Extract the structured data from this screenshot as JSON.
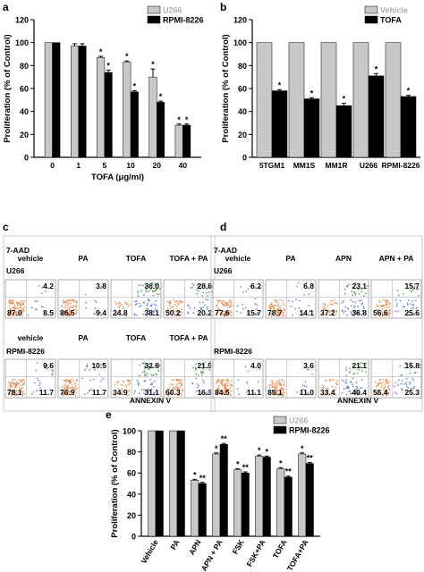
{
  "panels": {
    "a": "a",
    "b": "b",
    "c": "c",
    "d": "d",
    "e": "e"
  },
  "colors": {
    "gray": "#c8c8c8",
    "black": "#000000",
    "flow_border": "#9a9a9a",
    "orange": "#e8874a",
    "blue": "#4a6fc8",
    "green": "#3c9a3c"
  },
  "chart_data": [
    {
      "panel": "a",
      "type": "bar",
      "categories": [
        "0",
        "1",
        "5",
        "10",
        "20",
        "40"
      ],
      "series": [
        {
          "name": "U266",
          "color": "#c8c8c8",
          "values": [
            100,
            97,
            87,
            83,
            70,
            28
          ],
          "errors": [
            0,
            2,
            1,
            1,
            7,
            1
          ]
        },
        {
          "name": "RPMI-8226",
          "color": "#000000",
          "values": [
            100,
            97,
            74,
            57,
            48,
            28
          ],
          "errors": [
            0,
            2,
            2,
            1,
            1,
            1
          ]
        }
      ],
      "significance": [
        [
          "",
          "",
          "*",
          "*",
          "*",
          "*"
        ],
        [
          "",
          "",
          "*",
          "*",
          "*",
          "*"
        ]
      ],
      "ylabel": "Proliferation (% of Control)",
      "xlabel": "TOFA (μg/ml)",
      "ylim": [
        0,
        120
      ],
      "yticks": [
        "0",
        "20",
        "40",
        "60",
        "80",
        "100",
        "120"
      ],
      "legend": "top-right"
    },
    {
      "panel": "b",
      "type": "bar",
      "categories": [
        "5TGM1",
        "MM1S",
        "MM1R",
        "U266",
        "RPMI-8226"
      ],
      "series": [
        {
          "name": "Vehicle",
          "color": "#c8c8c8",
          "values": [
            100,
            100,
            100,
            100,
            100
          ],
          "errors": [
            0,
            0,
            0,
            0,
            0
          ]
        },
        {
          "name": "TOFA",
          "color": "#000000",
          "values": [
            58,
            51,
            45,
            71,
            53
          ],
          "errors": [
            1,
            1,
            2,
            2,
            1
          ]
        }
      ],
      "significance": [
        [
          "",
          "",
          "",
          "",
          ""
        ],
        [
          "*",
          "*",
          "*",
          "*",
          "*"
        ]
      ],
      "ylabel": "Proliferation (% of Control)",
      "xlabel": "",
      "ylim": [
        0,
        120
      ],
      "yticks": [
        "0",
        "20",
        "40",
        "60",
        "80",
        "100",
        "120"
      ],
      "legend": "top-right"
    },
    {
      "panel": "e",
      "type": "bar",
      "categories": [
        "Vehicle",
        "PA",
        "APN",
        "APN + PA",
        "FSK",
        "FSK+PA",
        "TOFA",
        "TOFA+PA"
      ],
      "series": [
        {
          "name": "U266",
          "color": "#c8c8c8",
          "values": [
            100,
            100,
            53,
            78,
            63,
            76,
            64,
            78
          ],
          "errors": [
            0,
            0,
            1,
            1,
            1,
            1,
            1,
            1
          ]
        },
        {
          "name": "RPMI-8226",
          "color": "#000000",
          "values": [
            100,
            100,
            50,
            87,
            60,
            75,
            56,
            69
          ],
          "errors": [
            0,
            0,
            1,
            1,
            1,
            1,
            1,
            1
          ]
        }
      ],
      "significance": [
        [
          "",
          "",
          "*",
          "*",
          "*",
          "*",
          "*",
          "*"
        ],
        [
          "",
          "",
          "**",
          "**",
          "**",
          "*",
          "**",
          "**"
        ]
      ],
      "ylabel": "Proliferation (% of Control)",
      "xlabel": "",
      "ylim": [
        0,
        100
      ],
      "yticks": [
        "0",
        "20",
        "40",
        "60",
        "80",
        "100"
      ],
      "legend": "top-right"
    }
  ],
  "flow_c": {
    "ylabel": "7-AAD",
    "xlabel": "ANNEXIN V",
    "rows": [
      {
        "cell_line": "U266",
        "cells": [
          {
            "label": "vehicle",
            "q_ur": "4.2",
            "q_ll": "87.0",
            "q_lr": "8.5"
          },
          {
            "label": "PA",
            "q_ur": "3.8",
            "q_ll": "86.5",
            "q_lr": "9.4"
          },
          {
            "label": "TOFA",
            "q_ur": "36.0",
            "q_ll": "24.8",
            "q_lr": "38.1"
          },
          {
            "label": "TOFA + PA",
            "q_ur": "28.6",
            "q_ll": "50.2",
            "q_lr": "20.2"
          }
        ]
      },
      {
        "cell_line": "RPMI-8226",
        "cells": [
          {
            "label": "vehicle",
            "q_ur": "9.6",
            "q_ll": "78.1",
            "q_lr": "11.7"
          },
          {
            "label": "PA",
            "q_ur": "10.5",
            "q_ll": "76.9",
            "q_lr": "11.7"
          },
          {
            "label": "TOFA",
            "q_ur": "32.6",
            "q_ll": "34.9",
            "q_lr": "31.1"
          },
          {
            "label": "TOFA + PA",
            "q_ur": "21.9",
            "q_ll": "60.3",
            "q_lr": "16.3"
          }
        ]
      }
    ]
  },
  "flow_d": {
    "ylabel": "7-AAD",
    "xlabel": "ANNEXIN V",
    "rows": [
      {
        "cell_line": "U266",
        "cells": [
          {
            "label": "vehicle",
            "q_ur": "6.2",
            "q_ll": "77.6",
            "q_lr": "15.7"
          },
          {
            "label": "PA",
            "q_ur": "6.8",
            "q_ll": "78.7",
            "q_lr": "14.1"
          },
          {
            "label": "APN",
            "q_ur": "23.1",
            "q_ll": "37.2",
            "q_lr": "36.8"
          },
          {
            "label": "APN + PA",
            "q_ur": "15.7",
            "q_ll": "56.6",
            "q_lr": "25.6"
          }
        ]
      },
      {
        "cell_line": "RPMI-8226",
        "cells": [
          {
            "label": "",
            "q_ur": "4.0",
            "q_ll": "84.5",
            "q_lr": "11.1"
          },
          {
            "label": "",
            "q_ur": "3.6",
            "q_ll": "85.1",
            "q_lr": "11.0"
          },
          {
            "label": "",
            "q_ur": "21.1",
            "q_ll": "33.4",
            "q_lr": "40.4"
          },
          {
            "label": "",
            "q_ur": "15.8",
            "q_ll": "55.4",
            "q_lr": "25.3"
          }
        ]
      }
    ]
  }
}
